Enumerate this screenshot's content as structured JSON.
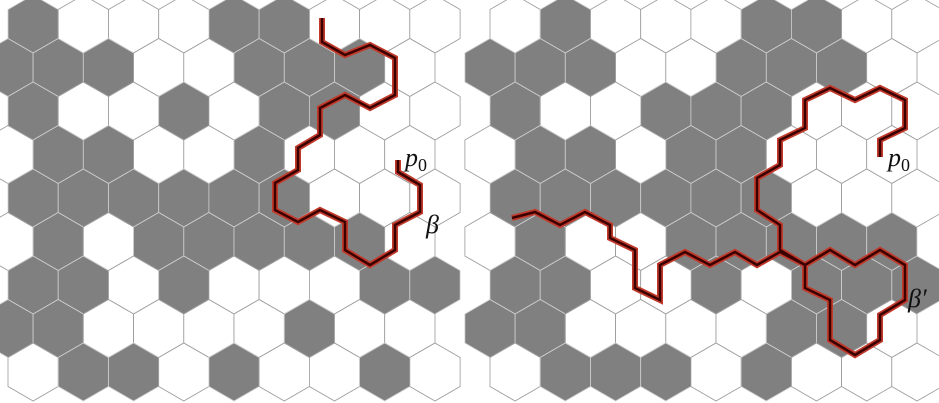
{
  "panels": [
    {
      "start_label": {
        "base": "p",
        "sub": "0"
      },
      "path_label": "β"
    },
    {
      "start_label": {
        "base": "p",
        "sub": "0"
      },
      "path_label": "β′"
    }
  ]
}
